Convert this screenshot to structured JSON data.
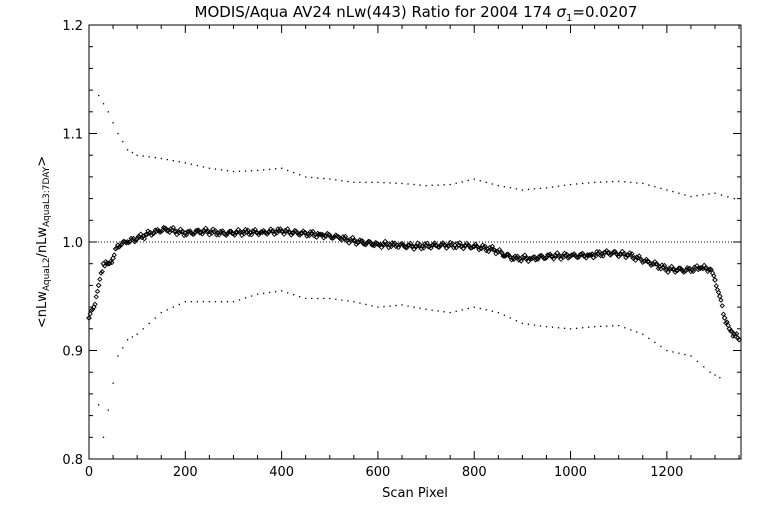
{
  "chart_data": {
    "type": "scatter",
    "title": {
      "prefix": "MODIS/Aqua AV24 nLw(443) Ratio for 2004 174 ",
      "sigma_symbol": "σ",
      "sigma_sub": "1",
      "suffix": "=0.0207"
    },
    "xlabel": "Scan Pixel",
    "ylabel": {
      "part1": "<nLw",
      "sub1": "AquaL2",
      "part2": "/nLw",
      "sub2": "AquaL3:7DAY",
      "part3": ">"
    },
    "xlim": [
      0,
      1354
    ],
    "ylim": [
      0.8,
      1.2
    ],
    "xticks": [
      0,
      200,
      400,
      600,
      800,
      1000,
      1200
    ],
    "xtick_labels": [
      "0",
      "200",
      "400",
      "600",
      "800",
      "1000",
      "1200"
    ],
    "yticks": [
      0.8,
      0.9,
      1.0,
      1.1,
      1.2
    ],
    "ytick_labels": [
      "0.8",
      "0.9",
      "1.0",
      "1.1",
      "1.2"
    ],
    "reference_line": 1.0,
    "grid": false,
    "series": [
      {
        "role": "mean",
        "marker": "diamond",
        "x": [
          0,
          10,
          20,
          30,
          40,
          50,
          60,
          80,
          100,
          120,
          140,
          160,
          180,
          200,
          240,
          280,
          320,
          360,
          400,
          440,
          480,
          520,
          560,
          600,
          640,
          680,
          720,
          760,
          800,
          840,
          880,
          920,
          960,
          1000,
          1040,
          1080,
          1120,
          1160,
          1200,
          1240,
          1270,
          1290,
          1300,
          1310,
          1320,
          1330,
          1340,
          1350
        ],
        "y": [
          0.93,
          0.94,
          0.96,
          0.98,
          0.98,
          0.985,
          0.997,
          1.0,
          1.003,
          1.007,
          1.01,
          1.012,
          1.01,
          1.008,
          1.01,
          1.008,
          1.009,
          1.009,
          1.01,
          1.008,
          1.007,
          1.004,
          1.0,
          0.998,
          0.997,
          0.996,
          0.997,
          0.997,
          0.996,
          0.993,
          0.985,
          0.985,
          0.987,
          0.987,
          0.988,
          0.99,
          0.988,
          0.982,
          0.975,
          0.974,
          0.976,
          0.975,
          0.965,
          0.95,
          0.93,
          0.92,
          0.915,
          0.91
        ]
      },
      {
        "role": "upper",
        "marker": "dot",
        "x": [
          20,
          40,
          60,
          80,
          100,
          150,
          200,
          250,
          300,
          350,
          400,
          450,
          500,
          550,
          600,
          650,
          700,
          750,
          800,
          850,
          900,
          950,
          1000,
          1050,
          1100,
          1150,
          1200,
          1250,
          1300,
          1340
        ],
        "y": [
          1.135,
          1.12,
          1.1,
          1.085,
          1.08,
          1.077,
          1.073,
          1.068,
          1.065,
          1.066,
          1.068,
          1.06,
          1.058,
          1.055,
          1.055,
          1.054,
          1.052,
          1.053,
          1.058,
          1.052,
          1.048,
          1.05,
          1.053,
          1.055,
          1.056,
          1.054,
          1.048,
          1.042,
          1.045,
          1.04
        ]
      },
      {
        "role": "lower",
        "marker": "dot",
        "x": [
          20,
          30,
          40,
          60,
          80,
          100,
          150,
          200,
          250,
          300,
          350,
          400,
          450,
          500,
          550,
          600,
          650,
          700,
          750,
          800,
          850,
          900,
          950,
          1000,
          1050,
          1100,
          1150,
          1200,
          1250,
          1290,
          1310
        ],
        "y": [
          0.85,
          0.82,
          0.845,
          0.895,
          0.91,
          0.915,
          0.935,
          0.945,
          0.945,
          0.945,
          0.952,
          0.955,
          0.948,
          0.948,
          0.945,
          0.94,
          0.942,
          0.938,
          0.935,
          0.94,
          0.935,
          0.925,
          0.922,
          0.92,
          0.922,
          0.923,
          0.915,
          0.9,
          0.895,
          0.88,
          0.875
        ]
      }
    ]
  }
}
